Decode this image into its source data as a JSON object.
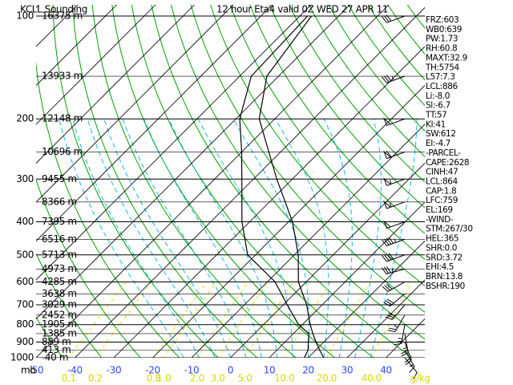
{
  "chart_data": {
    "type": "skewt",
    "title": "KCLL Sounding",
    "subtitle": "12 hour Eta4 valid 0Z WED 27 APR 11",
    "y_unit_label": "mb",
    "ylim": [
      1000,
      100
    ],
    "yticks": [
      100,
      200,
      300,
      400,
      500,
      600,
      700,
      800,
      900,
      1000
    ],
    "xlim": [
      -50,
      50
    ],
    "xticks": [
      -50,
      -40,
      -30,
      -20,
      -10,
      0,
      10,
      20,
      30,
      40
    ],
    "mixing_ratio_ticks": [
      0.1,
      0.2,
      0.8,
      {
        "value": 1.0,
        "label": "1.0"
      },
      {
        "value": 2.0,
        "label": "2.0"
      },
      {
        "value": 3.0,
        "label": "3.0"
      },
      {
        "value": 5.0,
        "label": "5.0"
      },
      {
        "value": 10.0,
        "label": "10.0"
      },
      {
        "value": 20.0,
        "label": "20.0"
      },
      {
        "value": 40.0,
        "label": "40.0"
      }
    ],
    "mixing_ratio_unit": "g/kg",
    "height_levels": [
      100,
      150,
      200,
      250,
      300,
      350,
      400,
      450,
      500,
      550,
      600,
      650,
      700,
      750,
      800,
      850,
      900,
      950,
      1000
    ],
    "height_labels": [
      "16375 m",
      "13933 m",
      "12148 m",
      "10696 m",
      "9455 m",
      "8366 m",
      "7395 m",
      "6516 m",
      "5713 m",
      "4973 m",
      "4285 m",
      "3638 m",
      "3029 m",
      "2452 m",
      "1905 m",
      "1385 m",
      "889 m",
      "413 m",
      "-40 m"
    ],
    "levels": [
      1000,
      950,
      900,
      850,
      800,
      700,
      600,
      500,
      400,
      300,
      250,
      200,
      150,
      100
    ],
    "series": [
      {
        "color": "#000000",
        "values": [
          24,
          21,
          18,
          15,
          12,
          6,
          -2,
          -9,
          -19,
          -34,
          -43,
          -54,
          -63,
          -67
        ]
      },
      {
        "color": "#000000",
        "values": [
          19,
          18,
          16,
          14,
          9,
          1,
          -8,
          -22,
          -32,
          -43,
          -50,
          -59,
          -67,
          -68
        ]
      }
    ],
    "winds": {
      "pressure": [
        100,
        150,
        200,
        250,
        300,
        350,
        400,
        450,
        500,
        550,
        600,
        650,
        700,
        750,
        800,
        850,
        900,
        950,
        1000
      ],
      "direction": [
        250,
        250,
        250,
        250,
        250,
        250,
        250,
        250,
        250,
        255,
        240,
        230,
        220,
        210,
        190,
        170,
        160,
        150,
        140
      ],
      "speed": [
        30,
        35,
        50,
        60,
        55,
        55,
        50,
        45,
        40,
        35,
        30,
        30,
        30,
        25,
        25,
        25,
        20,
        15,
        10
      ]
    },
    "indices": [
      "FRZ:603",
      "WB0:639",
      "PW:1.73",
      "RH:60.8",
      "MAXT:32.9",
      "TH:5754",
      "L57:7.3",
      "LCL:886",
      "Li:-8.0",
      "Sl:-6.7",
      "TT:57",
      "KI:41",
      "SW:612",
      "EI:-4.7",
      "-PARCEL-",
      "CAPE:2628",
      "CINH:47",
      "LCL:864",
      "CAP:1.8",
      "LFC:759",
      "EL:169",
      "-WIND-",
      "STM:267/30",
      "HEL:365",
      "SHR:0.0",
      "SRD:3.72",
      "EHI:4.5",
      "BRN:13.8",
      "BSHR:190"
    ]
  }
}
